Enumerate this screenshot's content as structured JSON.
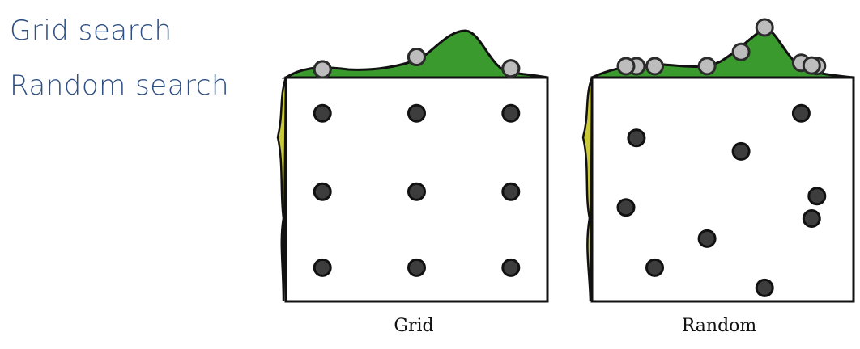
{
  "headings": {
    "grid": "Grid search",
    "random": "Random search"
  },
  "panels": [
    {
      "id": "grid",
      "caption": "Grid",
      "points": [
        {
          "u": 0.14,
          "v": 0.16
        },
        {
          "u": 0.5,
          "v": 0.16
        },
        {
          "u": 0.86,
          "v": 0.16
        },
        {
          "u": 0.14,
          "v": 0.51
        },
        {
          "u": 0.5,
          "v": 0.51
        },
        {
          "u": 0.86,
          "v": 0.51
        },
        {
          "u": 0.14,
          "v": 0.85
        },
        {
          "u": 0.5,
          "v": 0.85
        },
        {
          "u": 0.86,
          "v": 0.85
        }
      ]
    },
    {
      "id": "random",
      "caption": "Random",
      "points": [
        {
          "u": 0.17,
          "v": 0.27
        },
        {
          "u": 0.57,
          "v": 0.33
        },
        {
          "u": 0.8,
          "v": 0.16
        },
        {
          "u": 0.13,
          "v": 0.58
        },
        {
          "u": 0.86,
          "v": 0.53
        },
        {
          "u": 0.84,
          "v": 0.63
        },
        {
          "u": 0.44,
          "v": 0.72
        },
        {
          "u": 0.24,
          "v": 0.85
        },
        {
          "u": 0.66,
          "v": 0.94
        }
      ]
    }
  ],
  "colors": {
    "heading": "#2f4f83",
    "important_curve": "#3a9a2e",
    "unimportant_curve": "#c9c93a",
    "point_fill": "#3d3d3d",
    "projection_fill": "#bdbdbd",
    "outline": "#111111"
  }
}
